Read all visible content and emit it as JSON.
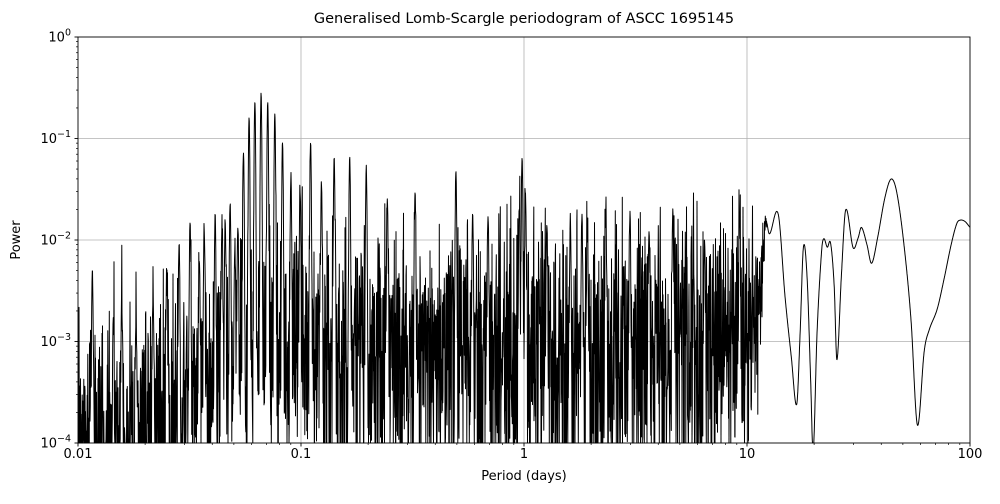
{
  "figure": {
    "background": "#ffffff"
  },
  "chart": {
    "title": "Generalised Lomb-Scargle periodogram of ASCC 1695145",
    "xlabel": "Period (days)",
    "ylabel": "Power",
    "line_color": "#000000",
    "grid_color": "#b0b0b0",
    "axis_color": "#000000",
    "tick_label_color": "#000000"
  },
  "chart_data": {
    "type": "line",
    "title": "Generalised Lomb-Scargle periodogram of ASCC 1695145",
    "xlabel": "Period (days)",
    "ylabel": "Power",
    "xscale": "log",
    "yscale": "log",
    "xlim": [
      0.01,
      100
    ],
    "ylim": [
      0.0001,
      1
    ],
    "grid": true,
    "legend": null,
    "x_ticks": [
      {
        "value": 0.01,
        "label": "0.01"
      },
      {
        "value": 0.1,
        "label": "0.1"
      },
      {
        "value": 1,
        "label": "1"
      },
      {
        "value": 10,
        "label": "10"
      },
      {
        "value": 100,
        "label": "100"
      }
    ],
    "y_ticks": [
      {
        "value": 1,
        "base": "10",
        "exp": "0"
      },
      {
        "value": 0.1,
        "base": "10",
        "exp": "−1"
      },
      {
        "value": 0.01,
        "base": "10",
        "exp": "−2"
      },
      {
        "value": 0.001,
        "base": "10",
        "exp": "−3"
      },
      {
        "value": 0.0001,
        "base": "10",
        "exp": "−4"
      }
    ],
    "main_peak": {
      "period_days": 0.0662,
      "power": 0.275
    },
    "peaks_period_power": [
      [
        0.0116,
        0.0047
      ],
      [
        0.0144,
        0.0017
      ],
      [
        0.0157,
        0.0023
      ],
      [
        0.0182,
        0.0015
      ],
      [
        0.0217,
        0.0026
      ],
      [
        0.025,
        0.0048
      ],
      [
        0.0284,
        0.009
      ],
      [
        0.0318,
        0.0147
      ],
      [
        0.035,
        0.006
      ],
      [
        0.0368,
        0.012
      ],
      [
        0.0412,
        0.0175
      ],
      [
        0.0442,
        0.013
      ],
      [
        0.0457,
        0.0145
      ],
      [
        0.0481,
        0.022
      ],
      [
        0.0505,
        0.008
      ],
      [
        0.0521,
        0.013
      ],
      [
        0.0552,
        0.072
      ],
      [
        0.0585,
        0.155
      ],
      [
        0.0621,
        0.23
      ],
      [
        0.0662,
        0.275
      ],
      [
        0.0709,
        0.225
      ],
      [
        0.0763,
        0.175
      ],
      [
        0.0826,
        0.09
      ],
      [
        0.0901,
        0.04
      ],
      [
        0.099,
        0.028
      ],
      [
        0.1104,
        0.09
      ],
      [
        0.1235,
        0.035
      ],
      [
        0.1408,
        0.065
      ],
      [
        0.1653,
        0.065
      ],
      [
        0.1961,
        0.05
      ],
      [
        0.2439,
        0.024
      ],
      [
        0.3247,
        0.029
      ],
      [
        0.495,
        0.047
      ],
      [
        0.5882,
        0.018
      ],
      [
        0.6897,
        0.015
      ],
      [
        0.952,
        0.02
      ],
      [
        0.9804,
        0.062
      ],
      [
        1.0152,
        0.025
      ],
      [
        1.2658,
        0.014
      ],
      [
        1.6129,
        0.013
      ],
      [
        1.8182,
        0.016
      ],
      [
        1.9231,
        0.012
      ],
      [
        2.3256,
        0.019
      ],
      [
        2.9851,
        0.016
      ],
      [
        3.6364,
        0.012
      ],
      [
        4.6512,
        0.0167
      ],
      [
        6.4516,
        0.009
      ],
      [
        9.2593,
        0.0158
      ]
    ],
    "noise_envelope_log10p_power": [
      [
        -2.0,
        0.00022
      ],
      [
        -1.75,
        0.0003
      ],
      [
        -1.5,
        0.0007
      ],
      [
        -1.3,
        0.0012
      ],
      [
        -1.15,
        0.002
      ],
      [
        -0.9,
        0.002
      ],
      [
        -0.5,
        0.002
      ],
      [
        0.0,
        0.0022
      ],
      [
        0.5,
        0.0025
      ],
      [
        0.9,
        0.0028
      ],
      [
        1.09,
        0.0032
      ]
    ],
    "smooth_tail_period_power": [
      [
        9.5,
        0.003
      ],
      [
        10.0,
        0.0015
      ],
      [
        10.5,
        0.0008
      ],
      [
        11.2,
        0.0035
      ],
      [
        12.0,
        0.0165
      ],
      [
        12.6,
        0.0115
      ],
      [
        13.8,
        0.018
      ],
      [
        14.8,
        0.0028
      ],
      [
        15.8,
        0.0007
      ],
      [
        16.7,
        0.00024
      ],
      [
        17.3,
        0.0012
      ],
      [
        17.9,
        0.0085
      ],
      [
        18.6,
        0.0042
      ],
      [
        19.3,
        0.0004
      ],
      [
        19.8,
        8e-05
      ],
      [
        20.6,
        0.0012
      ],
      [
        21.6,
        0.0078
      ],
      [
        22.1,
        0.0103
      ],
      [
        22.9,
        0.0085
      ],
      [
        23.7,
        0.0093
      ],
      [
        24.6,
        0.0035
      ],
      [
        25.3,
        0.00066
      ],
      [
        26.5,
        0.0045
      ],
      [
        27.7,
        0.0198
      ],
      [
        29.9,
        0.0084
      ],
      [
        31.5,
        0.0105
      ],
      [
        32.6,
        0.0133
      ],
      [
        34.5,
        0.009
      ],
      [
        36.2,
        0.0059
      ],
      [
        38.5,
        0.0105
      ],
      [
        41.5,
        0.026
      ],
      [
        44.3,
        0.0399
      ],
      [
        47.0,
        0.029
      ],
      [
        50.7,
        0.0085
      ],
      [
        54.4,
        0.0016
      ],
      [
        58.1,
        0.00015
      ],
      [
        62.3,
        0.0008
      ],
      [
        65.6,
        0.0013
      ],
      [
        71.3,
        0.0021
      ],
      [
        76.6,
        0.0042
      ],
      [
        82.3,
        0.009
      ],
      [
        87.2,
        0.0145
      ],
      [
        90.5,
        0.0157
      ],
      [
        95.0,
        0.0152
      ],
      [
        100.0,
        0.0133
      ]
    ],
    "noise_seed": 1695145,
    "samples_per_pixel": 4,
    "peak_sigma_log10p": 0.0022
  }
}
